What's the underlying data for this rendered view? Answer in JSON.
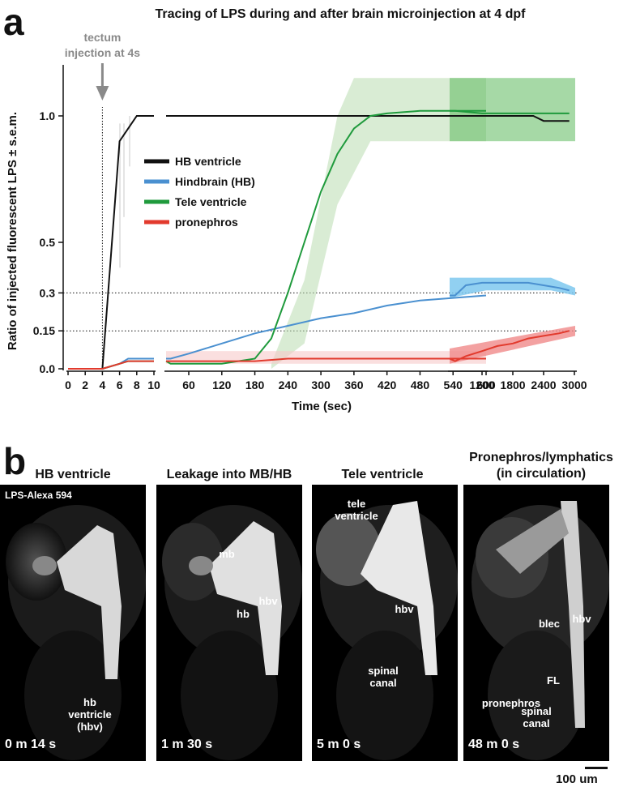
{
  "panel_a": {
    "letter": "a"
  },
  "panel_b": {
    "letter": "b"
  },
  "chart_data": {
    "type": "line",
    "title": "Tracing of LPS during and after brain microinjection at 4 dpf",
    "xlabel": "Time (sec)",
    "ylabel": "Ratio of injected fluorescent LPS ± s.e.m.",
    "ylim": [
      0,
      1.2
    ],
    "y_ticks": [
      "0.0",
      "0.15",
      "0.3",
      "0.5",
      "1.0"
    ],
    "reference_lines_y": [
      0.15,
      0.3
    ],
    "annotation": {
      "text": [
        "tectum",
        "injection at 4s"
      ],
      "x": 4
    },
    "x_segments": [
      {
        "range": [
          0,
          10
        ],
        "ticks": [
          "0",
          "2",
          "4",
          "6",
          "8",
          "10"
        ]
      },
      {
        "range": [
          10,
          600
        ],
        "ticks": [
          "60",
          "120",
          "180",
          "240",
          "300",
          "360",
          "420",
          "480",
          "540",
          "600"
        ]
      },
      {
        "range": [
          600,
          3000
        ],
        "ticks": [
          "1200",
          "1800",
          "2400",
          "3000"
        ]
      }
    ],
    "legend_position": "center-left",
    "series": [
      {
        "name": "HB ventricle",
        "color": "#111111",
        "x": [
          0,
          4,
          5,
          6,
          7,
          8,
          10,
          20,
          600,
          700,
          2200,
          2400,
          2900
        ],
        "y": [
          0,
          0,
          0.45,
          0.9,
          0.95,
          1.0,
          1.0,
          1.0,
          1.0,
          1.0,
          1.0,
          0.98,
          0.98
        ]
      },
      {
        "name": "Hindbrain (HB)",
        "color": "#4a90d0",
        "x": [
          0,
          4,
          6,
          7,
          8,
          10,
          20,
          60,
          120,
          180,
          240,
          300,
          360,
          420,
          480,
          540,
          600,
          700,
          900,
          1200,
          1500,
          1800,
          2100,
          2400,
          2700,
          2900
        ],
        "y": [
          0,
          0,
          0.02,
          0.04,
          0.04,
          0.04,
          0.04,
          0.06,
          0.1,
          0.14,
          0.17,
          0.2,
          0.22,
          0.25,
          0.27,
          0.28,
          0.29,
          0.29,
          0.33,
          0.34,
          0.34,
          0.34,
          0.34,
          0.33,
          0.32,
          0.31
        ],
        "band_after_600": "#7ec8ee"
      },
      {
        "name": "Tele ventricle",
        "color": "#1f9a3c",
        "x": [
          0,
          4,
          6,
          7,
          8,
          10,
          20,
          60,
          120,
          180,
          210,
          240,
          270,
          300,
          330,
          360,
          390,
          420,
          480,
          540,
          600,
          700,
          1200,
          1800,
          2400,
          2900
        ],
        "y": [
          0,
          0,
          0.02,
          0.03,
          0.03,
          0.03,
          0.02,
          0.02,
          0.02,
          0.04,
          0.12,
          0.3,
          0.5,
          0.7,
          0.85,
          0.95,
          1.0,
          1.01,
          1.02,
          1.02,
          1.02,
          1.02,
          1.01,
          1.01,
          1.01,
          1.01
        ]
      },
      {
        "name": "pronephros",
        "color": "#e23a2d",
        "x": [
          0,
          4,
          6,
          7,
          8,
          10,
          20,
          60,
          120,
          180,
          240,
          300,
          360,
          420,
          480,
          540,
          600,
          700,
          900,
          1200,
          1500,
          1800,
          2100,
          2400,
          2700,
          2900
        ],
        "y": [
          0,
          0,
          0.02,
          0.03,
          0.03,
          0.03,
          0.03,
          0.03,
          0.03,
          0.03,
          0.04,
          0.04,
          0.04,
          0.04,
          0.04,
          0.04,
          0.04,
          0.03,
          0.05,
          0.07,
          0.09,
          0.1,
          0.12,
          0.13,
          0.14,
          0.15
        ],
        "band_after_600": "#f08a8a"
      }
    ]
  },
  "photos": [
    {
      "title": [
        "HB ventricle"
      ],
      "time": "0 m 14 s",
      "stain": "LPS-Alexa 594",
      "labels": [
        "hb",
        "ventricle",
        "(hbv)"
      ]
    },
    {
      "title": [
        "Leakage into MB/HB"
      ],
      "time": "1 m 30 s",
      "labels": [
        "mb",
        "hb",
        "hbv"
      ]
    },
    {
      "title": [
        "Tele ventricle"
      ],
      "time": "5 m 0 s",
      "labels": [
        "tele",
        "ventricle",
        "hbv",
        "spinal",
        "canal"
      ]
    },
    {
      "title": [
        "Pronephros/lymphatics",
        "(in circulation)"
      ],
      "time": "48 m 0 s",
      "labels": [
        "blec",
        "hbv",
        "FL",
        "pronephros",
        "spinal",
        "canal"
      ]
    }
  ],
  "scale_bar": {
    "label": "100 um"
  }
}
